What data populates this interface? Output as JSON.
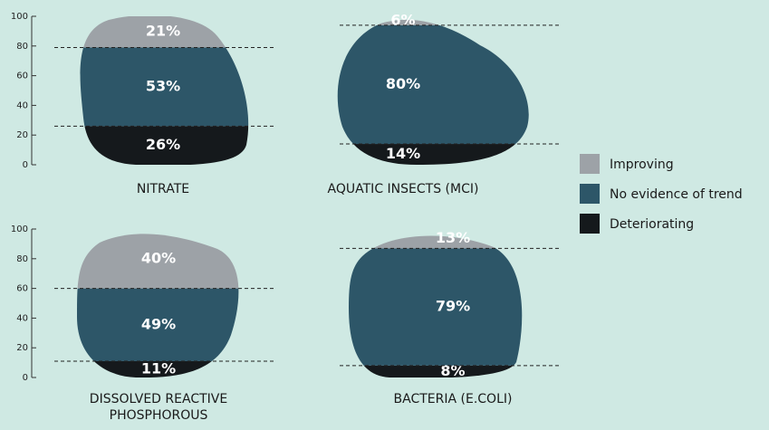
{
  "chart_data": {
    "type": "stacked-stone",
    "categories": [
      "NITRATE",
      "AQUATIC INSECTS (MCI)",
      "DISSOLVED REACTIVE PHOSPHOROUS",
      "BACTERIA (E.COLI)"
    ],
    "series": [
      {
        "name": "Deteriorating",
        "color": "#15191c",
        "values": [
          26,
          14,
          11,
          8
        ],
        "value_labels": [
          "26%",
          "14%",
          "11%",
          "8%"
        ]
      },
      {
        "name": "No evidence of trend",
        "color": "#2d5668",
        "values": [
          53,
          80,
          49,
          79
        ],
        "value_labels": [
          "53%",
          "80%",
          "49%",
          "79%"
        ]
      },
      {
        "name": "Improving",
        "color": "#9da2a7",
        "values": [
          21,
          6,
          40,
          13
        ],
        "value_labels": [
          "21%",
          "6%",
          "40%",
          "13%"
        ]
      }
    ],
    "ylim": [
      0,
      100
    ],
    "yticks": [
      0,
      20,
      40,
      60,
      80,
      100
    ]
  }
}
